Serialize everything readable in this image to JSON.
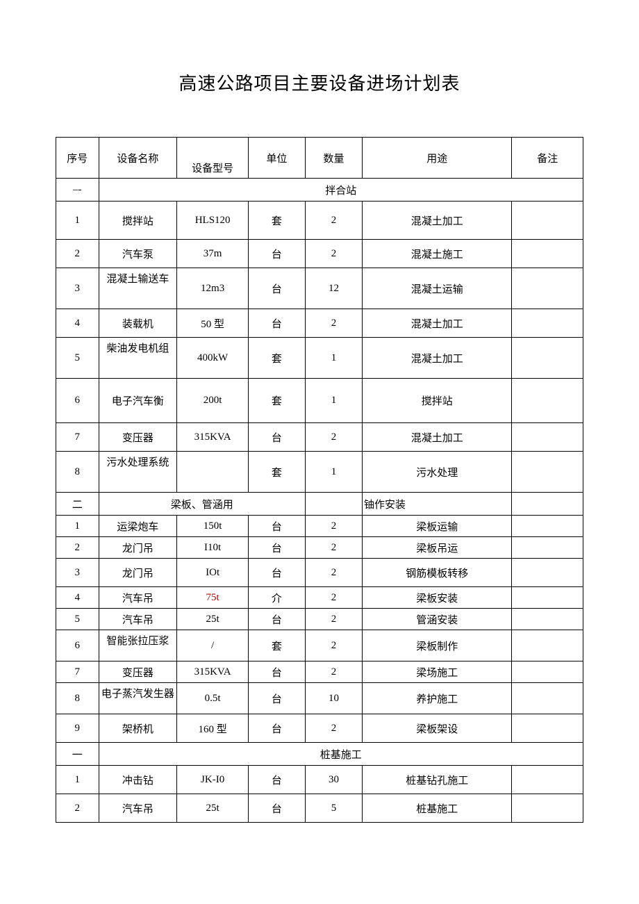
{
  "title": "高速公路项目主要设备进场计划表",
  "headers": {
    "seq": "序号",
    "name": "设备名称",
    "model": "设备型号",
    "unit": "单位",
    "qty": "数量",
    "use": "用途",
    "note": "备注"
  },
  "sections": [
    {
      "seq": "–-",
      "label": "拌合站",
      "rows": [
        {
          "seq": "1",
          "name": "搅拌站",
          "model": "HLS120",
          "unit": "套",
          "qty": "2",
          "use": "混凝土加工",
          "note": "",
          "tall": true
        },
        {
          "seq": "2",
          "name": "汽车泵",
          "model": "37m",
          "unit": "台",
          "qty": "2",
          "use": "混凝土施工",
          "note": ""
        },
        {
          "seq": "3",
          "name": "混凝土输送车",
          "model": "12m3",
          "unit": "台",
          "qty": "12",
          "use": "混凝土运输",
          "note": "",
          "nameTop": true,
          "tall": true
        },
        {
          "seq": "4",
          "name": "装载机",
          "model": "50 型",
          "unit": "台",
          "qty": "2",
          "use": "混凝土加工",
          "note": ""
        },
        {
          "seq": "5",
          "name": "柴油发电机组",
          "model": "400kW",
          "unit": "套",
          "qty": "1",
          "use": "混凝土加工",
          "note": "",
          "nameTop": true,
          "tall": true
        },
        {
          "seq": "6",
          "name": "电子汽车衡",
          "model": "200t",
          "unit": "套",
          "qty": "1",
          "use": "搅拌站",
          "note": "",
          "tall": true,
          "vtall": true
        },
        {
          "seq": "7",
          "name": "变压器",
          "model": "315KVA",
          "unit": "台",
          "qty": "2",
          "use": "混凝土加工",
          "note": ""
        },
        {
          "seq": "8",
          "name": "污水处理系统",
          "model": "",
          "unit": "套",
          "qty": "1",
          "use": "污水处理",
          "note": "",
          "nameTop": true,
          "tall": true
        }
      ]
    },
    {
      "seq": "二",
      "labelLeft": "梁板、管涵用",
      "labelRight": "铀作安装",
      "split": true,
      "rows": [
        {
          "seq": "1",
          "name": "运梁炮车",
          "model": "150t",
          "unit": "台",
          "qty": "2",
          "use": "梁板运输",
          "note": "",
          "short": true
        },
        {
          "seq": "2",
          "name": "龙门吊",
          "model": "I10t",
          "unit": "台",
          "qty": "2",
          "use": "梁板吊运",
          "note": "",
          "short": true
        },
        {
          "seq": "3",
          "name": "龙门吊",
          "model": "IOt",
          "unit": "台",
          "qty": "2",
          "use": "钢筋模板转移",
          "note": ""
        },
        {
          "seq": "4",
          "name": "汽车吊",
          "model": "75t",
          "unit": "介",
          "qty": "2",
          "use": "梁板安装",
          "note": "",
          "short": true,
          "modelRed": true
        },
        {
          "seq": "5",
          "name": "汽车吊",
          "model": "25t",
          "unit": "台",
          "qty": "2",
          "use": "管涵安装",
          "note": "",
          "short": true
        },
        {
          "seq": "6",
          "name": "智能张拉压浆",
          "model": "/",
          "unit": "套",
          "qty": "2",
          "use": "梁板制作",
          "note": "",
          "nameTop": true
        },
        {
          "seq": "7",
          "name": "变压器",
          "model": "315KVA",
          "unit": "台",
          "qty": "2",
          "use": "梁场施工",
          "note": "",
          "short": true
        },
        {
          "seq": "8",
          "name": "电子蒸汽发生器",
          "model": "0.5t",
          "unit": "台",
          "qty": "10",
          "use": "养护施工",
          "note": "",
          "nameTop": true
        },
        {
          "seq": "9",
          "name": "架桥机",
          "model": "160 型",
          "unit": "台",
          "qty": "2",
          "use": "梁板架设",
          "note": ""
        }
      ]
    },
    {
      "seq": "一",
      "label": "桩基施工",
      "rows": [
        {
          "seq": "1",
          "name": "冲击钻",
          "model": "JK-I0",
          "unit": "台",
          "qty": "30",
          "use": "桩基钻孔施工",
          "note": ""
        },
        {
          "seq": "2",
          "name": "汽车吊",
          "model": "25t",
          "unit": "台",
          "qty": "5",
          "use": "桩基施工",
          "note": ""
        }
      ]
    }
  ]
}
